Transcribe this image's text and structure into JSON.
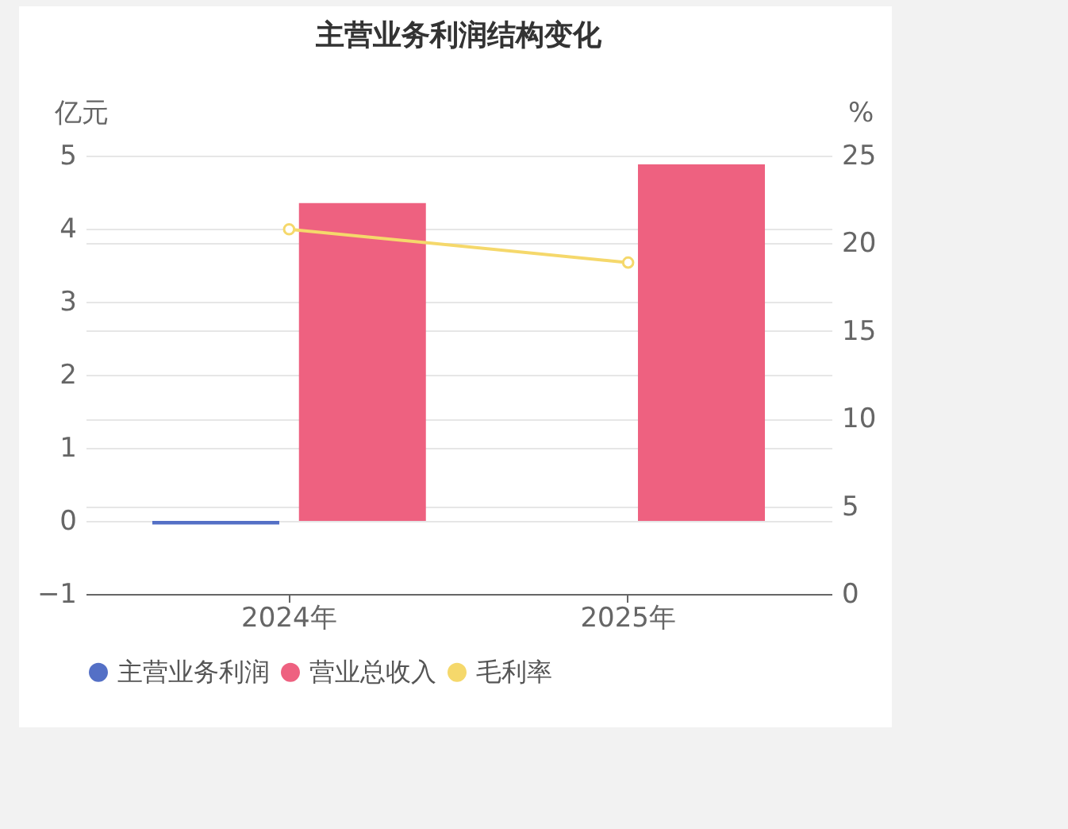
{
  "chart_data": {
    "type": "bar",
    "title": "主营业务利润结构变化",
    "categories": [
      "2024年",
      "2025年"
    ],
    "ylabel": "亿元",
    "y2label": "%",
    "ylim": [
      -1,
      5
    ],
    "yticks": [
      -1,
      0,
      1,
      2,
      3,
      4,
      5
    ],
    "y2lim": [
      0,
      25
    ],
    "y2ticks": [
      0,
      5,
      10,
      15,
      20,
      25
    ],
    "grid": true,
    "legend": "bottom",
    "marker": "circle",
    "series": [
      {
        "name": "主营业务利润",
        "color": "#5470c6",
        "values": [
          -0.05,
          null
        ]
      },
      {
        "name": "营业总收入",
        "color": "#ee6180",
        "values": [
          4.35,
          4.88
        ]
      },
      {
        "name": "毛利率",
        "type": "line",
        "axis": "y2",
        "color": "#f5d86b",
        "values": [
          20.8,
          18.9
        ]
      }
    ]
  }
}
